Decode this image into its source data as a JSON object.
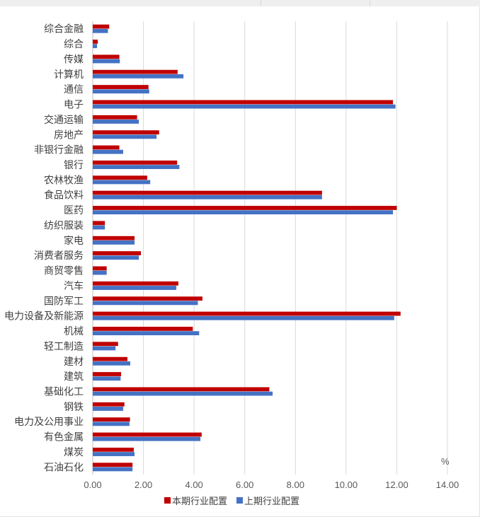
{
  "chart_data": {
    "type": "bar",
    "orientation": "horizontal",
    "categories": [
      "综合金融",
      "综合",
      "传媒",
      "计算机",
      "通信",
      "电子",
      "交通运输",
      "房地产",
      "非银行金融",
      "银行",
      "农林牧渔",
      "食品饮料",
      "医药",
      "纺织服装",
      "家电",
      "消费者服务",
      "商贸零售",
      "汽车",
      "国防军工",
      "电力设备及新能源",
      "机械",
      "轻工制造",
      "建材",
      "建筑",
      "基础化工",
      "钢铁",
      "电力及公用事业",
      "有色金属",
      "煤炭",
      "石油石化"
    ],
    "series": [
      {
        "name": "本期行业配置",
        "color": "#c00000",
        "values": [
          0.65,
          0.2,
          1.05,
          3.35,
          2.2,
          11.85,
          1.75,
          2.62,
          1.05,
          3.33,
          2.15,
          9.05,
          12.0,
          0.48,
          1.65,
          1.9,
          0.55,
          3.38,
          4.33,
          12.15,
          3.95,
          1.0,
          1.37,
          1.12,
          6.97,
          1.25,
          1.47,
          4.3,
          1.62,
          1.57
        ]
      },
      {
        "name": "上期行业配置",
        "color": "#4472c4",
        "values": [
          0.6,
          0.17,
          1.07,
          3.58,
          2.23,
          11.95,
          1.82,
          2.52,
          1.2,
          3.42,
          2.27,
          9.05,
          11.85,
          0.48,
          1.65,
          1.82,
          0.55,
          3.3,
          4.15,
          11.9,
          4.2,
          0.9,
          1.48,
          1.1,
          7.1,
          1.2,
          1.45,
          4.25,
          1.65,
          1.57
        ]
      }
    ],
    "xlim": [
      0,
      14
    ],
    "xticks": [
      "0.00",
      "2.00",
      "4.00",
      "6.00",
      "8.00",
      "10.00",
      "12.00",
      "14.00"
    ],
    "unit_label": "%",
    "grid": "vertical",
    "legend_position": "bottom"
  }
}
